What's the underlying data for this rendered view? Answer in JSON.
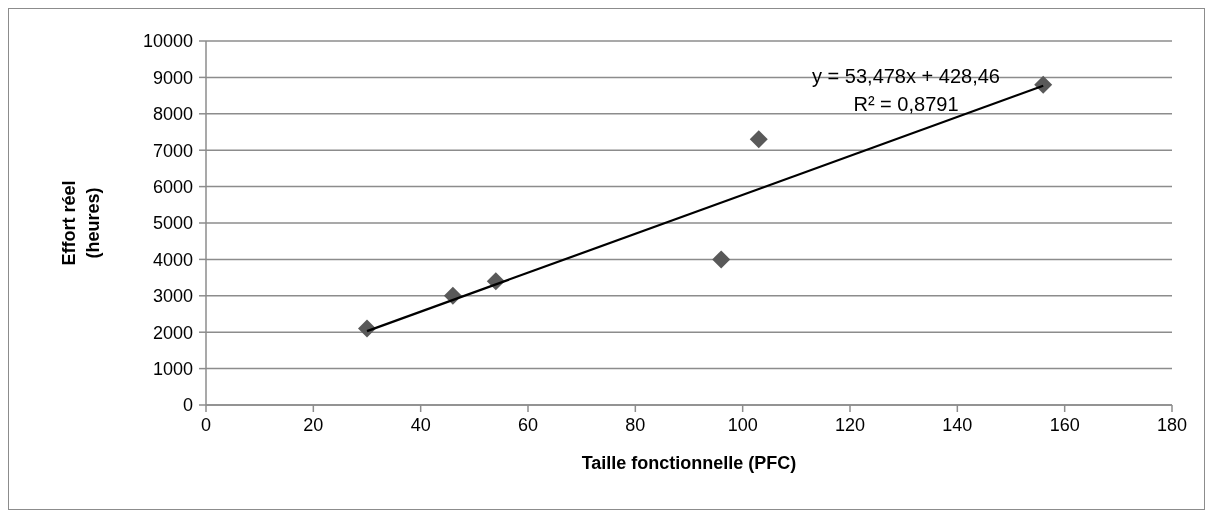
{
  "chart_data": {
    "type": "scatter",
    "xlabel": "Taille fonctionnelle (PFC)",
    "ylabel": "Effort réel (heures)",
    "marker": "diamond",
    "grid": "y",
    "legend": false,
    "series": [
      {
        "color": "#595959",
        "x": [
          30,
          46,
          54,
          96,
          103,
          156
        ],
        "values": [
          2100,
          3000,
          3400,
          4000,
          7300,
          8800
        ]
      },
      {
        "type": "line",
        "color": "#000000",
        "marker": "none",
        "x": [
          30,
          156
        ],
        "values": [
          2030,
          8770
        ]
      }
    ],
    "xlim": [
      0,
      180
    ],
    "xticks": [
      0,
      20,
      40,
      60,
      80,
      100,
      120,
      140,
      160,
      180
    ],
    "ylim": [
      0,
      10000
    ],
    "yticks": [
      0,
      1000,
      2000,
      3000,
      4000,
      5000,
      6000,
      7000,
      8000,
      9000,
      10000
    ],
    "annotations": [
      "y = 53,478x + 428,46",
      "R² = 0,8791"
    ]
  }
}
